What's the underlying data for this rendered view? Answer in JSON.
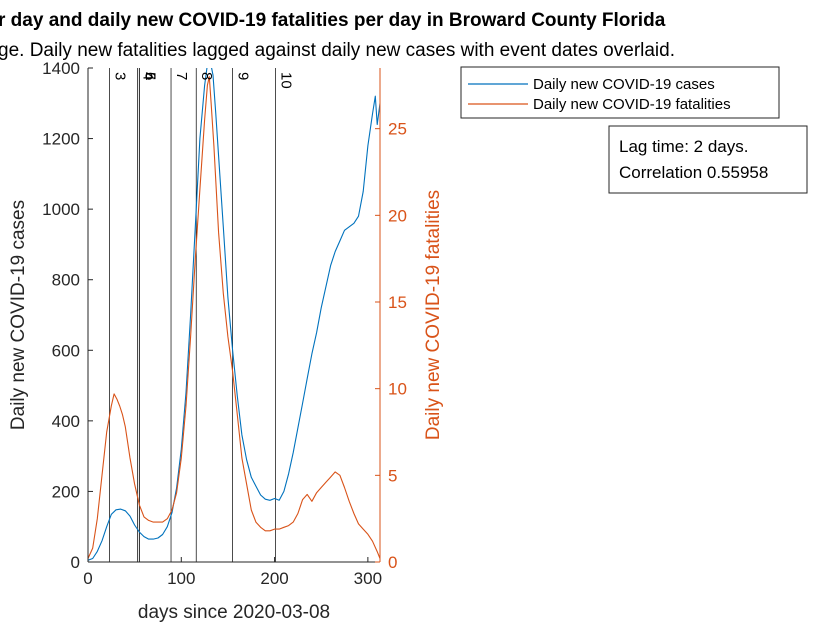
{
  "chart_data": {
    "type": "line",
    "title": "r day and daily new COVID-19 fatalities per day in Broward County Florida",
    "subtitle": "ge. Daily new fatalities lagged against daily new cases with event dates overlaid.",
    "xlabel": "days since 2020-03-08",
    "ylabel_left": "Daily new COVID-19 cases",
    "ylabel_right": "Daily new COVID-19 fatalities",
    "xlim": [
      0,
      313
    ],
    "ylim_left": [
      0,
      1400
    ],
    "ylim_right": [
      0,
      28.5
    ],
    "x_ticks": [
      0,
      100,
      200,
      300
    ],
    "y_ticks_left": [
      0,
      200,
      400,
      600,
      800,
      1000,
      1200,
      1400
    ],
    "y_ticks_right": [
      0,
      5,
      10,
      15,
      20,
      25
    ],
    "grid": false,
    "legend_position": "top-right",
    "colors": {
      "cases": "#0072BD",
      "fatalities": "#D95319",
      "events": "#000000"
    },
    "series": [
      {
        "name": "Daily new COVID-19 cases",
        "axis": "left",
        "x": [
          0,
          5,
          10,
          15,
          20,
          25,
          30,
          35,
          40,
          45,
          50,
          55,
          60,
          65,
          70,
          75,
          80,
          85,
          90,
          95,
          100,
          105,
          110,
          115,
          120,
          125,
          128,
          131,
          134,
          137,
          140,
          145,
          150,
          155,
          160,
          165,
          170,
          175,
          180,
          185,
          190,
          195,
          200,
          205,
          210,
          215,
          220,
          225,
          230,
          235,
          240,
          245,
          250,
          255,
          260,
          265,
          270,
          275,
          280,
          285,
          290,
          295,
          300,
          305,
          308,
          310,
          313
        ],
        "values": [
          5,
          10,
          30,
          60,
          100,
          135,
          148,
          150,
          145,
          130,
          105,
          85,
          72,
          65,
          65,
          68,
          78,
          100,
          140,
          210,
          320,
          480,
          700,
          950,
          1200,
          1350,
          1410,
          1420,
          1380,
          1270,
          1150,
          950,
          750,
          600,
          470,
          360,
          290,
          240,
          215,
          190,
          178,
          175,
          180,
          175,
          200,
          250,
          310,
          380,
          450,
          520,
          590,
          650,
          720,
          780,
          840,
          880,
          910,
          940,
          950,
          960,
          980,
          1050,
          1180,
          1270,
          1320,
          1240,
          1300
        ]
      },
      {
        "name": "Daily new COVID-19 fatalities",
        "axis": "right",
        "x": [
          0,
          5,
          10,
          15,
          20,
          25,
          28,
          31,
          34,
          37,
          40,
          45,
          50,
          55,
          60,
          65,
          70,
          75,
          80,
          85,
          90,
          95,
          100,
          105,
          110,
          115,
          120,
          125,
          128,
          130,
          132,
          135,
          140,
          145,
          150,
          155,
          160,
          165,
          170,
          175,
          180,
          185,
          190,
          195,
          200,
          205,
          210,
          215,
          220,
          225,
          230,
          235,
          240,
          245,
          250,
          255,
          260,
          265,
          270,
          275,
          280,
          285,
          290,
          295,
          300,
          305,
          310,
          313
        ],
        "values": [
          0.2,
          0.8,
          2.5,
          5,
          7.5,
          9,
          9.7,
          9.4,
          9,
          8.5,
          7.8,
          6,
          4.5,
          3.3,
          2.6,
          2.4,
          2.3,
          2.3,
          2.3,
          2.5,
          3,
          4,
          6,
          9,
          13,
          17.5,
          21.5,
          25.5,
          27.5,
          28,
          26.5,
          24,
          19,
          15.5,
          13,
          11,
          8.5,
          6,
          4.5,
          3,
          2.3,
          2.0,
          1.8,
          1.8,
          1.9,
          1.9,
          2.0,
          2.1,
          2.3,
          2.8,
          3.6,
          3.9,
          3.5,
          4.0,
          4.3,
          4.6,
          4.9,
          5.2,
          5.0,
          4.3,
          3.5,
          2.8,
          2.2,
          1.9,
          1.6,
          1.2,
          0.6,
          0.2
        ]
      }
    ],
    "events": [
      {
        "label": "3",
        "x": 23
      },
      {
        "label": "4",
        "x": 53
      },
      {
        "label": "5",
        "x": 55
      },
      {
        "label": "6",
        "x": 55
      },
      {
        "label": "7",
        "x": 89
      },
      {
        "label": "8",
        "x": 116
      },
      {
        "label": "9",
        "x": 155
      },
      {
        "label": "10",
        "x": 201
      }
    ],
    "annotation": {
      "lines": [
        "Lag time: 2 days.",
        "Correlation 0.55958"
      ]
    }
  }
}
